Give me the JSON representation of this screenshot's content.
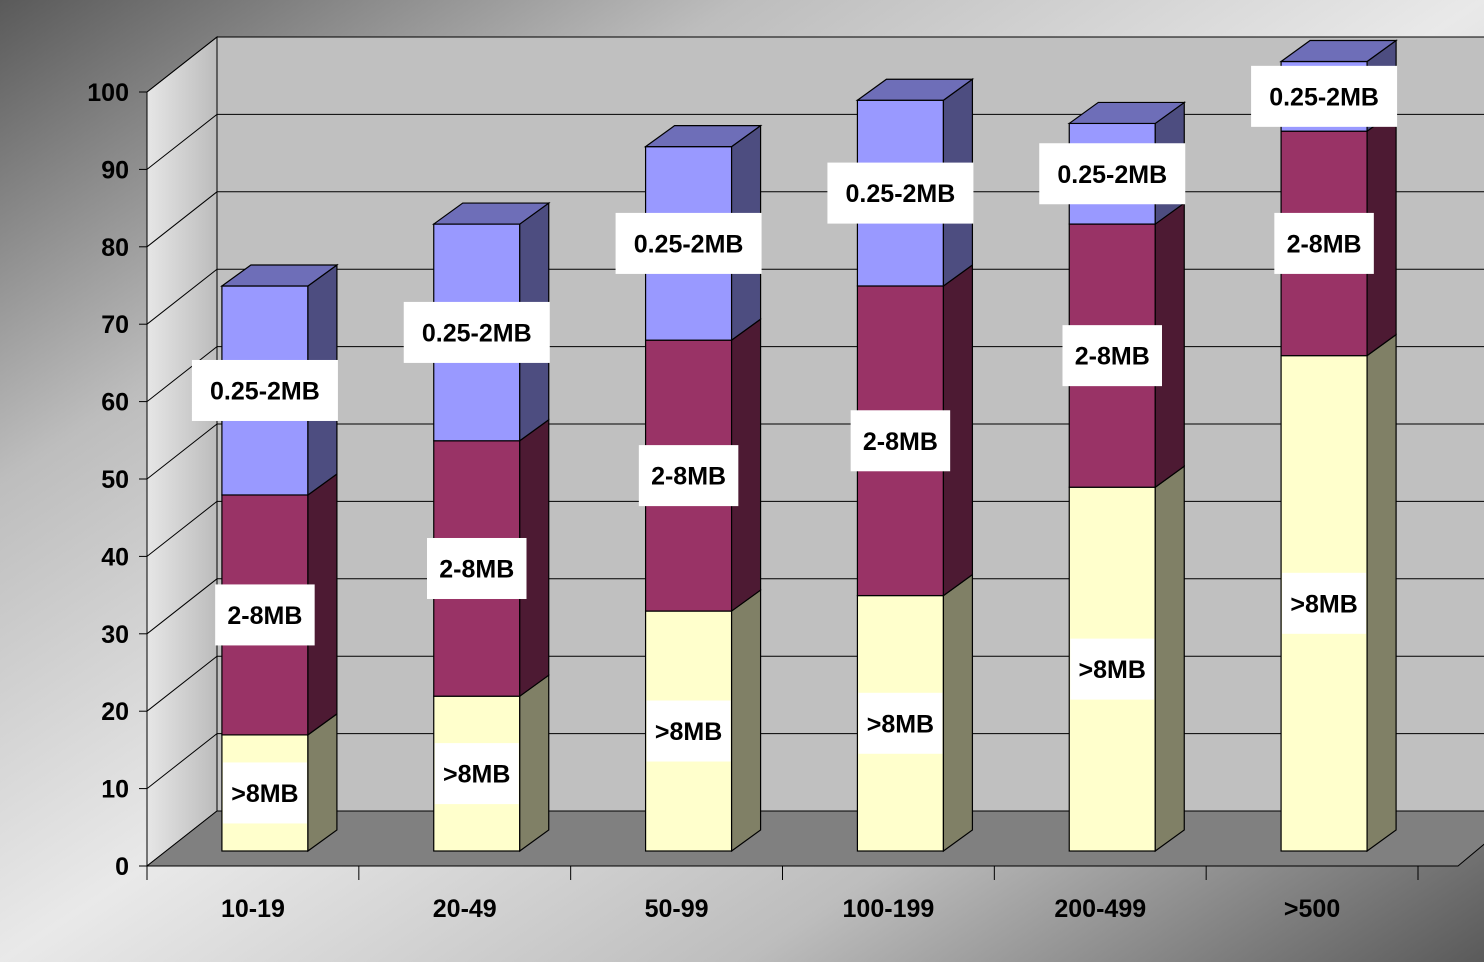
{
  "chart_data": {
    "type": "bar",
    "stacked": true,
    "three_d": true,
    "categories": [
      "10-19",
      "20-49",
      "50-99",
      "100-199",
      "200-499",
      ">500"
    ],
    "series": [
      {
        "name": ">8MB",
        "values": [
          15,
          20,
          31,
          33,
          47,
          64
        ],
        "color": "#FFFFCC"
      },
      {
        "name": "2-8MB",
        "values": [
          31,
          33,
          35,
          40,
          34,
          29
        ],
        "color": "#993366"
      },
      {
        "name": "0.25-2MB",
        "values": [
          27,
          28,
          25,
          24,
          13,
          9
        ],
        "color": "#9999FF"
      }
    ],
    "ylim": [
      0,
      100
    ],
    "yticks": [
      0,
      10,
      20,
      30,
      40,
      50,
      60,
      70,
      80,
      90,
      100
    ],
    "title": "",
    "xlabel": "",
    "ylabel": "",
    "grid": true,
    "legend": "none",
    "data_labels": "series name on each segment",
    "colors": {
      "wall": "#C0C0C0",
      "floor": "#808080",
      "gridline": "#000000"
    }
  }
}
